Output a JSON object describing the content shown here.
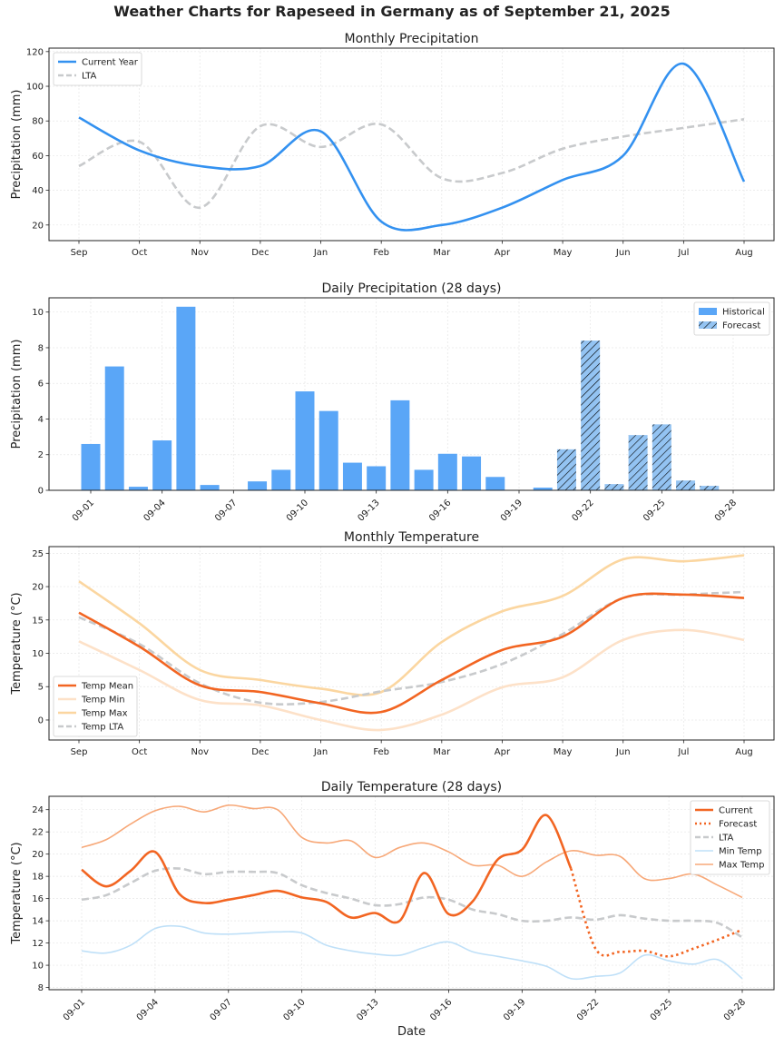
{
  "suptitle": "Weather Charts for Rapeseed in Germany as of September 21, 2025",
  "colors": {
    "precip_current": "#3391f0",
    "lta": "#c8cacc",
    "bar_hist": "#5aa6f7",
    "bar_forecast": "#93c3f2",
    "temp_mean": "#f26522",
    "temp_min": "#fde1c8",
    "temp_max": "#fbd6a0",
    "daily_min": "#bfe0f8",
    "daily_max": "#f7a878"
  },
  "chart_data": [
    {
      "id": "monthly-precip",
      "type": "line",
      "title": "Monthly Precipitation",
      "xlabel": "",
      "ylabel": "Precipitation (mm)",
      "categories": [
        "Sep",
        "Oct",
        "Nov",
        "Dec",
        "Jan",
        "Feb",
        "Mar",
        "Apr",
        "May",
        "Jun",
        "Jul",
        "Aug"
      ],
      "ylim": [
        11,
        122
      ],
      "yticks": [
        20,
        40,
        60,
        80,
        100,
        120
      ],
      "grid": true,
      "legend": "top-left",
      "series": [
        {
          "name": "Current Year",
          "style": "solid",
          "values": [
            82,
            63,
            54,
            54,
            74,
            22,
            20,
            30,
            46,
            60,
            113,
            45
          ]
        },
        {
          "name": "LTA",
          "style": "dashed",
          "values": [
            54,
            68,
            30,
            77,
            65,
            78,
            47,
            50,
            64,
            71,
            76,
            81
          ]
        }
      ]
    },
    {
      "id": "daily-precip",
      "type": "bar",
      "title": "Daily Precipitation (28 days)",
      "xlabel": "",
      "ylabel": "Precipitation (mm)",
      "categories": [
        "09-01",
        "09-02",
        "09-03",
        "09-04",
        "09-05",
        "09-06",
        "09-07",
        "09-08",
        "09-09",
        "09-10",
        "09-11",
        "09-12",
        "09-13",
        "09-14",
        "09-15",
        "09-16",
        "09-17",
        "09-18",
        "09-19",
        "09-20",
        "09-21",
        "09-22",
        "09-23",
        "09-24",
        "09-25",
        "09-26",
        "09-27",
        "09-28"
      ],
      "xtick_labels": [
        "09-01",
        "09-04",
        "09-07",
        "09-10",
        "09-13",
        "09-16",
        "09-19",
        "09-22",
        "09-25",
        "09-28"
      ],
      "values": [
        2.6,
        6.95,
        0.2,
        2.8,
        10.3,
        0.3,
        0.0,
        0.5,
        1.15,
        5.55,
        4.45,
        1.55,
        1.35,
        5.05,
        1.15,
        2.05,
        1.9,
        0.75,
        0.0,
        0.15,
        2.3,
        8.4,
        0.35,
        3.1,
        3.7,
        0.55,
        0.25,
        0.0
      ],
      "forecast_start_index": 20,
      "ylim": [
        0,
        10.8
      ],
      "yticks": [
        0,
        2,
        4,
        6,
        8,
        10
      ],
      "grid": true,
      "legend": "top-right",
      "legend_entries": [
        "Historical",
        "Forecast"
      ]
    },
    {
      "id": "monthly-temp",
      "type": "line",
      "title": "Monthly Temperature",
      "xlabel": "",
      "ylabel": "Temperature (°C)",
      "categories": [
        "Sep",
        "Oct",
        "Nov",
        "Dec",
        "Jan",
        "Feb",
        "Mar",
        "Apr",
        "May",
        "Jun",
        "Jul",
        "Aug"
      ],
      "ylim": [
        -3,
        26
      ],
      "yticks": [
        0,
        5,
        10,
        15,
        20,
        25
      ],
      "grid": true,
      "legend": "bottom-left",
      "series": [
        {
          "name": "Temp Mean",
          "style": "solid",
          "values": [
            16.1,
            11.0,
            5.2,
            4.2,
            2.5,
            1.2,
            6.0,
            10.5,
            12.5,
            18.3,
            18.8,
            18.3
          ]
        },
        {
          "name": "Temp Min",
          "style": "solid",
          "values": [
            11.8,
            7.5,
            3.0,
            2.2,
            0.0,
            -1.5,
            0.8,
            4.9,
            6.4,
            12.0,
            13.5,
            12.0
          ]
        },
        {
          "name": "Temp Max",
          "style": "solid",
          "values": [
            20.8,
            14.5,
            7.5,
            6.0,
            4.7,
            4.2,
            11.7,
            16.3,
            18.6,
            24.1,
            23.8,
            24.7
          ]
        },
        {
          "name": "Temp LTA",
          "style": "dashed",
          "values": [
            15.4,
            11.4,
            5.5,
            2.6,
            2.7,
            4.3,
            5.7,
            8.4,
            12.9,
            18.3,
            18.8,
            19.2
          ]
        }
      ]
    },
    {
      "id": "daily-temp",
      "type": "line",
      "title": "Daily Temperature (28 days)",
      "xlabel": "Date",
      "ylabel": "Temperature (°C)",
      "categories": [
        "09-01",
        "09-02",
        "09-03",
        "09-04",
        "09-05",
        "09-06",
        "09-07",
        "09-08",
        "09-09",
        "09-10",
        "09-11",
        "09-12",
        "09-13",
        "09-14",
        "09-15",
        "09-16",
        "09-17",
        "09-18",
        "09-19",
        "09-20",
        "09-21",
        "09-22",
        "09-23",
        "09-24",
        "09-25",
        "09-26",
        "09-27",
        "09-28"
      ],
      "xtick_labels": [
        "09-01",
        "09-04",
        "09-07",
        "09-10",
        "09-13",
        "09-16",
        "09-19",
        "09-22",
        "09-25",
        "09-28"
      ],
      "ylim": [
        7.8,
        25.2
      ],
      "yticks": [
        8,
        10,
        12,
        14,
        16,
        18,
        20,
        22,
        24
      ],
      "grid": true,
      "legend": "top-right",
      "series": [
        {
          "name": "Current",
          "style": "solid",
          "start_index": 0,
          "values": [
            18.6,
            17.1,
            18.5,
            20.2,
            16.4,
            15.6,
            15.9,
            16.3,
            16.7,
            16.1,
            15.7,
            14.3,
            14.7,
            14.0,
            18.3,
            14.6,
            15.8,
            19.5,
            20.4,
            23.5,
            18.7
          ]
        },
        {
          "name": "Forecast",
          "style": "dotted",
          "start_index": 20,
          "values": [
            18.7,
            11.5,
            11.2,
            11.3,
            10.8,
            11.5,
            12.3,
            13.2
          ]
        },
        {
          "name": "LTA",
          "style": "dashed",
          "start_index": 0,
          "values": [
            15.9,
            16.3,
            17.4,
            18.5,
            18.7,
            18.2,
            18.4,
            18.4,
            18.3,
            17.2,
            16.5,
            16.0,
            15.4,
            15.5,
            16.1,
            15.9,
            15.0,
            14.6,
            14.0,
            14.0,
            14.3,
            14.1,
            14.5,
            14.2,
            14.0,
            14.0,
            13.8,
            12.5
          ]
        },
        {
          "name": "Min Temp",
          "style": "solid",
          "start_index": 0,
          "values": [
            11.3,
            11.1,
            11.8,
            13.3,
            13.5,
            12.9,
            12.8,
            12.9,
            13.0,
            12.9,
            11.8,
            11.3,
            11.0,
            10.9,
            11.6,
            12.1,
            11.2,
            10.8,
            10.4,
            9.9,
            8.8,
            9.0,
            9.3,
            10.9,
            10.4,
            10.1,
            10.5,
            8.8
          ]
        },
        {
          "name": "Max Temp",
          "style": "solid",
          "start_index": 0,
          "values": [
            20.6,
            21.3,
            22.7,
            23.9,
            24.3,
            23.8,
            24.4,
            24.1,
            24.0,
            21.5,
            21.0,
            21.2,
            19.7,
            20.6,
            21.0,
            20.2,
            19.0,
            19.0,
            18.0,
            19.3,
            20.3,
            19.9,
            19.8,
            17.8,
            17.8,
            18.2,
            17.2,
            16.1
          ]
        }
      ]
    }
  ]
}
